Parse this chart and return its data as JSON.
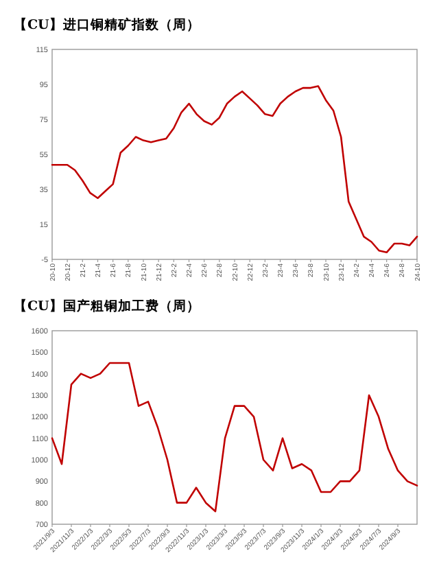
{
  "chart_data": [
    {
      "type": "line",
      "title": "【CU】进口铜精矿指数（周）",
      "categories": [
        "20-10",
        null,
        "20-12",
        null,
        "21-2",
        null,
        "21-4",
        null,
        "21-6",
        null,
        "21-8",
        null,
        "21-10",
        null,
        "21-12",
        null,
        "22-2",
        null,
        "22-4",
        null,
        "22-6",
        null,
        "22-8",
        null,
        "22-10",
        null,
        "22-12",
        null,
        "23-2",
        null,
        "23-4",
        null,
        "23-6",
        null,
        "23-8",
        null,
        "23-10",
        null,
        "23-12",
        null,
        "24-2",
        null,
        "24-4",
        null,
        "24-6",
        null,
        "24-8",
        null,
        "24-10"
      ],
      "series": [
        {
          "color": "#c00000",
          "values": [
            49,
            49,
            49,
            46,
            40,
            33,
            30,
            34,
            38,
            56,
            60,
            65,
            63,
            62,
            63,
            64,
            70,
            79,
            84,
            78,
            74,
            72,
            76,
            84,
            88,
            91,
            87,
            83,
            78,
            77,
            84,
            88,
            91,
            93,
            93,
            94,
            86,
            80,
            65,
            28,
            18,
            8,
            5,
            0,
            -1,
            4,
            4,
            3,
            8
          ]
        }
      ],
      "ylim": [
        -5,
        115
      ],
      "yticks": [
        -5,
        15,
        35,
        55,
        75,
        95,
        115
      ]
    },
    {
      "type": "line",
      "title": "【CU】国产粗铜加工费（周）",
      "categories": [
        "2021/9/3",
        null,
        "2021/11/3",
        null,
        "2022/1/3",
        null,
        "2022/3/3",
        null,
        "2022/5/3",
        null,
        "2022/7/3",
        null,
        "2022/9/3",
        null,
        "2022/11/3",
        null,
        "2023/1/3",
        null,
        "2023/3/3",
        null,
        "2023/5/3",
        null,
        "2023/7/3",
        null,
        "2023/9/3",
        null,
        "2023/11/3",
        null,
        "2024/1/3",
        null,
        "2024/3/3",
        null,
        "2024/5/3",
        null,
        "2024/7/3",
        null,
        "2024/9/3",
        null,
        null
      ],
      "series": [
        {
          "color": "#c00000",
          "values": [
            1100,
            980,
            1350,
            1400,
            1380,
            1400,
            1450,
            1450,
            1450,
            1250,
            1270,
            1150,
            1000,
            800,
            800,
            870,
            800,
            760,
            1100,
            1250,
            1250,
            1200,
            1000,
            950,
            1100,
            960,
            980,
            950,
            850,
            850,
            900,
            900,
            950,
            1300,
            1200,
            1050,
            950,
            900,
            880
          ]
        }
      ],
      "ylim": [
        700,
        1600
      ],
      "yticks": [
        700,
        800,
        900,
        1000,
        1100,
        1200,
        1300,
        1400,
        1500,
        1600
      ]
    }
  ]
}
